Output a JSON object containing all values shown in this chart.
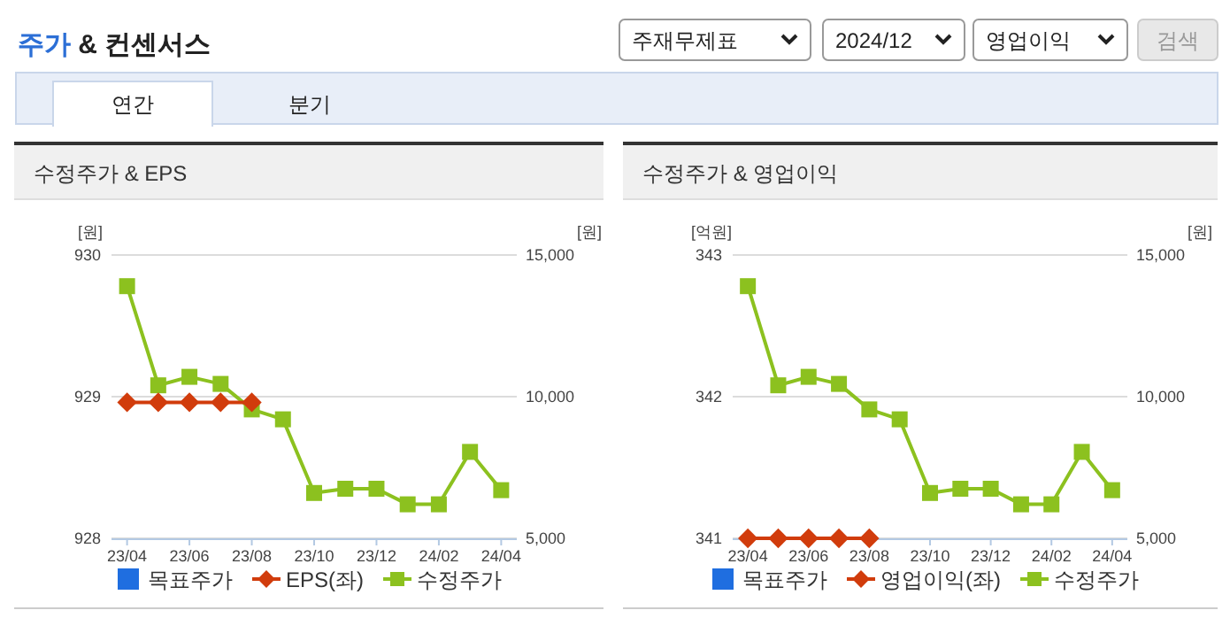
{
  "chart_data": [
    {
      "type": "other",
      "annotations": [
        "주가 & 컨센서스",
        "주재무제표",
        "2024/12",
        "영업이익",
        "검색",
        "연간",
        "분기"
      ]
    },
    {
      "type": "line",
      "title": "수정주가 & EPS",
      "ylabel": "[원]",
      "y2label": "[원]",
      "categories": [
        "23/04",
        null,
        "23/06",
        null,
        "23/08",
        null,
        "23/10",
        null,
        "23/12",
        null,
        "24/02",
        null,
        "24/04"
      ],
      "ylim": [
        928,
        930
      ],
      "yticks": [
        928,
        929,
        930
      ],
      "y2lim": [
        5000,
        15000
      ],
      "y2ticks": [
        {
          "value": 5000,
          "label": "5,000"
        },
        {
          "value": 10000,
          "label": "10,000"
        },
        {
          "value": 15000,
          "label": "15,000"
        }
      ],
      "grid": "y",
      "legend": "bottom",
      "series": [
        {
          "name": "목표주가",
          "type": "scatter",
          "marker": "square",
          "color": "#1f6ee0",
          "values": [
            null,
            null,
            null,
            null,
            null,
            null,
            null,
            null,
            null,
            null,
            null,
            null,
            null
          ]
        },
        {
          "name": "EPS(좌)",
          "type": "line",
          "marker": "diamond",
          "color": "#d13c0c",
          "values": [
            928.96,
            928.96,
            928.96,
            928.96,
            928.96,
            null,
            null,
            null,
            null,
            null,
            null,
            null,
            null
          ]
        },
        {
          "name": "수정주가",
          "type": "line",
          "marker": "square",
          "axis": "y2",
          "color": "#8cc11f",
          "values": [
            13900,
            10400,
            10700,
            10450,
            9550,
            9200,
            6600,
            6750,
            6750,
            6200,
            6200,
            8050,
            6700
          ]
        }
      ]
    },
    {
      "type": "line",
      "title": "수정주가 & 영업이익",
      "ylabel": "[억원]",
      "y2label": "[원]",
      "categories": [
        "23/04",
        null,
        "23/06",
        null,
        "23/08",
        null,
        "23/10",
        null,
        "23/12",
        null,
        "24/02",
        null,
        "24/04"
      ],
      "ylim": [
        341,
        343
      ],
      "yticks": [
        341,
        342,
        343
      ],
      "y2lim": [
        5000,
        15000
      ],
      "y2ticks": [
        {
          "value": 5000,
          "label": "5,000"
        },
        {
          "value": 10000,
          "label": "10,000"
        },
        {
          "value": 15000,
          "label": "15,000"
        }
      ],
      "grid": "y",
      "legend": "bottom",
      "series": [
        {
          "name": "목표주가",
          "type": "scatter",
          "marker": "square",
          "color": "#1f6ee0",
          "values": [
            null,
            null,
            null,
            null,
            null,
            null,
            null,
            null,
            null,
            null,
            null,
            null,
            null
          ]
        },
        {
          "name": "영업이익(좌)",
          "type": "line",
          "marker": "diamond",
          "color": "#d13c0c",
          "values": [
            341,
            341,
            341,
            341,
            341,
            null,
            null,
            null,
            null,
            null,
            null,
            null,
            null
          ]
        },
        {
          "name": "수정주가",
          "type": "line",
          "marker": "square",
          "axis": "y2",
          "color": "#8cc11f",
          "values": [
            13900,
            10400,
            10700,
            10450,
            9550,
            9200,
            6600,
            6750,
            6750,
            6200,
            6200,
            8050,
            6700
          ]
        }
      ]
    }
  ]
}
